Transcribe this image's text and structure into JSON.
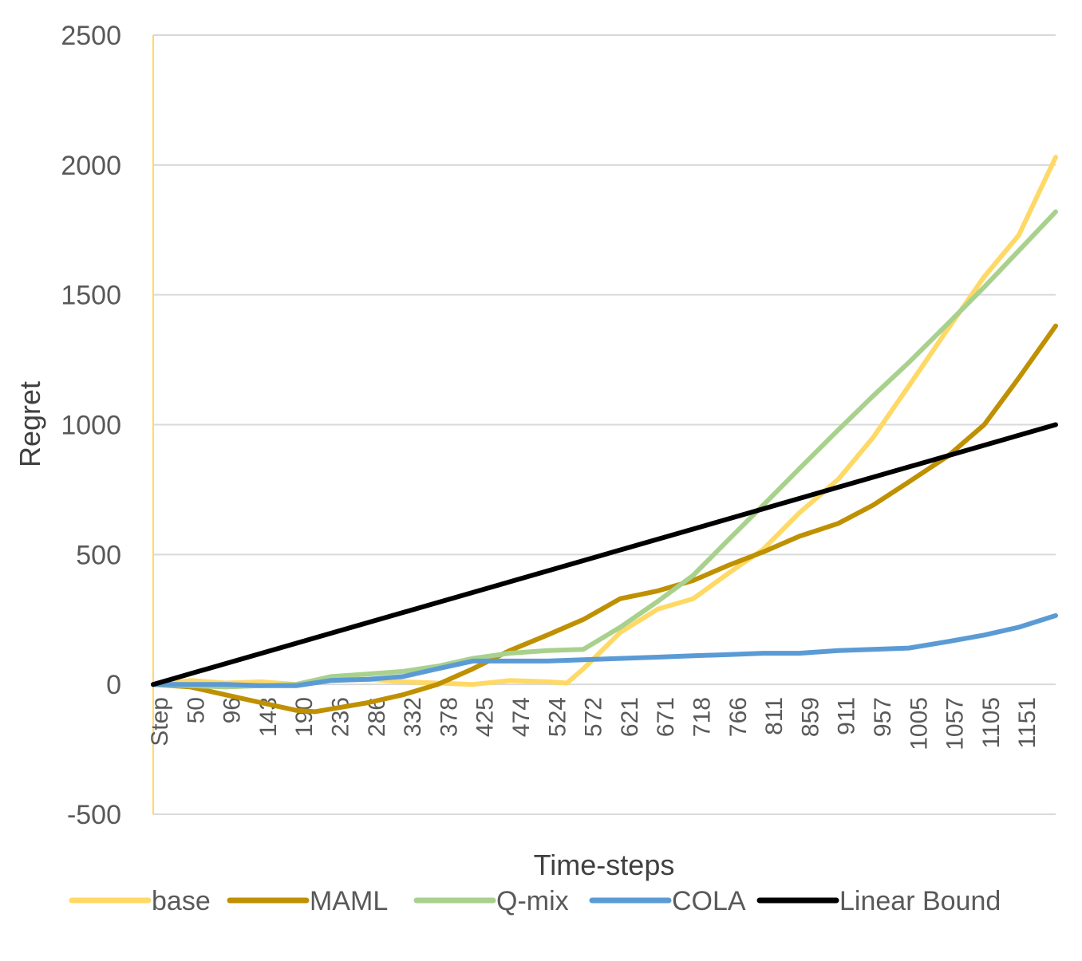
{
  "chart_data": {
    "type": "line",
    "title": "",
    "xlabel": "Time-steps",
    "ylabel": "Regret",
    "ylim": [
      -500,
      2500
    ],
    "yticks": [
      2500,
      2000,
      1500,
      1000,
      500,
      0,
      -500
    ],
    "xlim": [
      0,
      1200
    ],
    "xticks": [
      "Step",
      "50",
      "96",
      "143",
      "190",
      "236",
      "286",
      "332",
      "378",
      "425",
      "474",
      "524",
      "572",
      "621",
      "671",
      "718",
      "766",
      "811",
      "859",
      "911",
      "957",
      "1005",
      "1057",
      "1105",
      "1151"
    ],
    "grid": true,
    "legend_position": "bottom",
    "series": [
      {
        "name": "base",
        "color": "#FFD966",
        "x": [
          0,
          50,
          96,
          143,
          190,
          236,
          286,
          332,
          378,
          425,
          474,
          524,
          550,
          572,
          621,
          671,
          718,
          766,
          811,
          859,
          911,
          957,
          1005,
          1057,
          1105,
          1151,
          1200
        ],
        "y": [
          0,
          15,
          5,
          10,
          0,
          15,
          20,
          10,
          5,
          0,
          15,
          10,
          5,
          60,
          200,
          290,
          330,
          430,
          520,
          660,
          790,
          950,
          1150,
          1370,
          1570,
          1730,
          2030
        ]
      },
      {
        "name": "MAML",
        "color": "#BF9000",
        "x": [
          0,
          50,
          96,
          143,
          190,
          215,
          236,
          286,
          332,
          378,
          425,
          474,
          524,
          572,
          621,
          671,
          718,
          766,
          811,
          859,
          911,
          957,
          1005,
          1057,
          1105,
          1151,
          1200
        ],
        "y": [
          0,
          -10,
          -40,
          -70,
          -100,
          -105,
          -95,
          -70,
          -40,
          0,
          60,
          130,
          190,
          250,
          330,
          360,
          400,
          460,
          510,
          570,
          620,
          690,
          780,
          880,
          1000,
          1180,
          1380
        ]
      },
      {
        "name": "Q-mix",
        "color": "#A9D18E",
        "x": [
          0,
          50,
          96,
          143,
          190,
          236,
          286,
          332,
          378,
          425,
          474,
          524,
          572,
          621,
          671,
          718,
          766,
          811,
          859,
          911,
          957,
          1005,
          1057,
          1105,
          1151,
          1200
        ],
        "y": [
          0,
          -5,
          -10,
          -5,
          0,
          30,
          40,
          50,
          70,
          100,
          120,
          130,
          135,
          220,
          320,
          420,
          560,
          690,
          830,
          980,
          1110,
          1240,
          1390,
          1530,
          1670,
          1820
        ]
      },
      {
        "name": "COLA",
        "color": "#5B9BD5",
        "x": [
          0,
          50,
          96,
          143,
          190,
          236,
          286,
          332,
          378,
          425,
          474,
          524,
          572,
          621,
          671,
          718,
          766,
          811,
          859,
          911,
          957,
          1005,
          1057,
          1105,
          1151,
          1200
        ],
        "y": [
          0,
          0,
          0,
          -5,
          -5,
          15,
          20,
          30,
          60,
          90,
          90,
          90,
          95,
          100,
          105,
          110,
          115,
          120,
          120,
          130,
          135,
          140,
          165,
          190,
          220,
          265
        ]
      },
      {
        "name": "Linear Bound",
        "color": "#000000",
        "x": [
          0,
          1200
        ],
        "y": [
          0,
          1000
        ]
      }
    ]
  }
}
